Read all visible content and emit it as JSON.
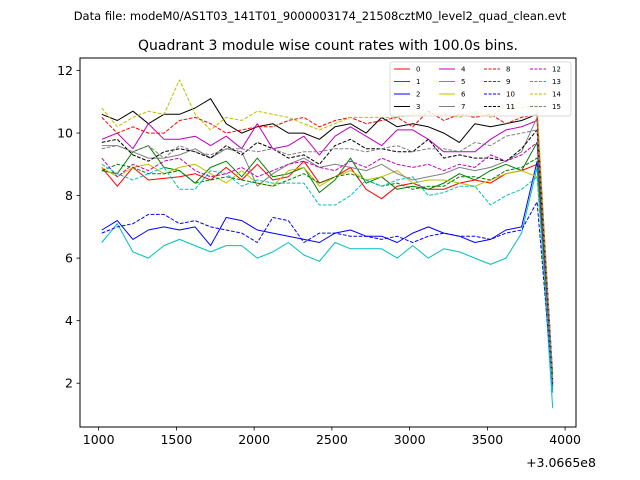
{
  "suptitle": "Data file: modeM0/AS1T03_141T01_9000003174_21508cztM0_level2_quad_clean.evt",
  "chart_data": {
    "type": "line",
    "title": "Quadrant 3 module wise count rates with 100.0s bins.",
    "xlabel": "",
    "ylabel": "",
    "x_offset_label": "+3.0665e8",
    "xlim": [
      880,
      4070
    ],
    "ylim": [
      0.6,
      12.4
    ],
    "xticks": [
      1000,
      1500,
      2000,
      2500,
      3000,
      3500,
      4000
    ],
    "xtick_labels": [
      "1000",
      "1500",
      "2000",
      "2500",
      "3000",
      "3500",
      "4000"
    ],
    "yticks": [
      2,
      4,
      6,
      8,
      10,
      12
    ],
    "ytick_labels": [
      "2",
      "4",
      "6",
      "8",
      "10",
      "12"
    ],
    "grid": false,
    "legend": {
      "placement": "top-right",
      "columns": 4
    },
    "x": [
      1020,
      1120,
      1220,
      1320,
      1420,
      1520,
      1620,
      1720,
      1820,
      1920,
      2020,
      2120,
      2220,
      2320,
      2420,
      2520,
      2620,
      2720,
      2820,
      2920,
      3020,
      3120,
      3220,
      3320,
      3420,
      3520,
      3620,
      3720,
      3820,
      3920
    ],
    "series": [
      {
        "name": "0",
        "color": "#ff0000",
        "dash": "solid",
        "values": [
          8.9,
          8.3,
          8.9,
          8.5,
          8.55,
          8.6,
          8.7,
          8.5,
          8.9,
          8.5,
          9.0,
          8.5,
          8.6,
          9.1,
          8.4,
          8.6,
          8.9,
          8.2,
          7.9,
          8.3,
          8.4,
          8.2,
          8.2,
          8.4,
          8.5,
          8.4,
          8.7,
          8.8,
          9.0,
          2.2
        ]
      },
      {
        "name": "1",
        "color": "#008000",
        "dash": "solid",
        "values": [
          8.8,
          8.7,
          9.4,
          9.6,
          8.9,
          8.8,
          8.4,
          8.9,
          9.1,
          8.6,
          9.2,
          8.6,
          8.7,
          8.9,
          8.1,
          8.5,
          9.2,
          8.4,
          8.6,
          8.2,
          8.3,
          8.2,
          8.4,
          8.7,
          8.5,
          8.8,
          9.0,
          8.8,
          9.7,
          1.9
        ]
      },
      {
        "name": "2",
        "color": "#0000ff",
        "dash": "solid",
        "values": [
          6.9,
          7.2,
          6.6,
          6.9,
          7.0,
          6.9,
          7.0,
          6.4,
          7.3,
          7.2,
          6.9,
          6.8,
          6.7,
          6.6,
          6.5,
          6.8,
          6.9,
          6.7,
          6.7,
          6.5,
          6.8,
          7.0,
          6.8,
          6.7,
          6.5,
          6.6,
          6.9,
          7.0,
          9.1,
          1.8
        ]
      },
      {
        "name": "3",
        "color": "#000000",
        "dash": "solid",
        "values": [
          10.6,
          10.4,
          10.7,
          10.3,
          10.6,
          10.6,
          10.8,
          11.1,
          10.3,
          10.0,
          10.2,
          10.3,
          10.0,
          10.0,
          9.8,
          10.2,
          10.3,
          10.0,
          10.5,
          10.2,
          10.3,
          10.2,
          10.0,
          9.7,
          10.3,
          10.2,
          10.3,
          10.4,
          10.6,
          2.0
        ]
      },
      {
        "name": "4",
        "color": "#bf00bf",
        "dash": "solid",
        "values": [
          9.8,
          10.0,
          9.5,
          10.3,
          9.8,
          9.8,
          9.9,
          9.6,
          9.9,
          9.5,
          10.3,
          9.5,
          9.6,
          9.9,
          9.3,
          9.9,
          10.2,
          9.9,
          9.6,
          10.1,
          10.1,
          9.8,
          9.4,
          9.4,
          9.4,
          9.8,
          10.1,
          10.2,
          10.4,
          2.1
        ]
      },
      {
        "name": "5",
        "color": "#00bfbf",
        "dash": "solid",
        "values": [
          6.5,
          7.1,
          6.2,
          6.0,
          6.4,
          6.6,
          6.4,
          6.2,
          6.4,
          6.4,
          6.0,
          6.2,
          6.5,
          6.1,
          5.9,
          6.5,
          6.3,
          6.3,
          6.3,
          6.0,
          6.4,
          6.0,
          6.3,
          6.2,
          6.0,
          5.8,
          6.0,
          6.8,
          8.9,
          1.2
        ]
      },
      {
        "name": "6",
        "color": "#bfbf00",
        "dash": "solid",
        "values": [
          8.9,
          8.6,
          8.9,
          9.0,
          8.7,
          8.9,
          9.0,
          8.7,
          8.4,
          8.8,
          8.4,
          8.3,
          8.8,
          8.9,
          8.3,
          8.6,
          8.8,
          8.5,
          8.6,
          8.8,
          8.4,
          8.5,
          8.5,
          8.4,
          8.3,
          8.5,
          8.7,
          8.8,
          8.6,
          2.0
        ]
      },
      {
        "name": "7",
        "color": "#808080",
        "dash": "solid",
        "values": [
          9.6,
          9.6,
          9.4,
          9.2,
          9.2,
          9.3,
          9.5,
          9.2,
          9.5,
          9.4,
          8.3,
          8.7,
          9.0,
          9.2,
          8.9,
          9.0,
          8.9,
          8.8,
          9.0,
          8.7,
          8.5,
          8.6,
          8.7,
          8.9,
          8.8,
          8.9,
          9.1,
          9.4,
          10.5,
          1.7
        ]
      },
      {
        "name": "8",
        "color": "#ff0000",
        "dash": "dashed",
        "values": [
          10.5,
          10.0,
          10.2,
          10.0,
          10.0,
          10.4,
          10.5,
          10.3,
          10.0,
          10.1,
          10.2,
          10.2,
          10.4,
          10.5,
          10.2,
          10.4,
          10.5,
          10.3,
          10.4,
          10.5,
          10.2,
          10.7,
          10.4,
          10.6,
          10.5,
          10.6,
          10.3,
          10.5,
          10.6,
          2.3
        ]
      },
      {
        "name": "9",
        "color": "#008000",
        "dash": "dashed",
        "values": [
          8.8,
          9.0,
          8.9,
          8.7,
          8.7,
          8.8,
          8.4,
          8.5,
          8.6,
          8.5,
          8.4,
          8.3,
          8.5,
          8.7,
          8.4,
          8.6,
          8.7,
          8.5,
          8.3,
          8.4,
          8.2,
          8.3,
          8.3,
          8.6,
          8.6,
          8.5,
          8.8,
          8.9,
          9.2,
          2.0
        ]
      },
      {
        "name": "10",
        "color": "#0000ff",
        "dash": "dashed",
        "values": [
          6.8,
          7.0,
          7.1,
          7.4,
          7.4,
          7.1,
          7.2,
          7.0,
          6.9,
          6.8,
          6.5,
          7.3,
          7.2,
          6.5,
          6.8,
          6.8,
          6.7,
          6.7,
          6.6,
          6.7,
          6.5,
          6.7,
          6.8,
          6.7,
          6.7,
          6.6,
          6.8,
          6.9,
          7.8,
          1.9
        ]
      },
      {
        "name": "11",
        "color": "#000000",
        "dash": "dashed",
        "values": [
          9.7,
          9.8,
          9.3,
          9.1,
          9.4,
          9.5,
          9.4,
          9.2,
          9.6,
          9.3,
          9.7,
          9.5,
          9.2,
          9.3,
          9.0,
          9.6,
          9.8,
          9.5,
          9.5,
          9.4,
          9.4,
          9.8,
          9.2,
          9.3,
          9.2,
          9.2,
          9.1,
          9.5,
          10.1,
          2.1
        ]
      },
      {
        "name": "12",
        "color": "#bf00bf",
        "dash": "dashed",
        "values": [
          9.2,
          8.6,
          9.0,
          8.8,
          9.1,
          9.2,
          8.8,
          8.6,
          8.7,
          8.9,
          8.6,
          8.8,
          9.0,
          9.1,
          8.9,
          8.8,
          9.1,
          8.9,
          9.2,
          9.0,
          8.9,
          9.0,
          8.8,
          9.0,
          8.9,
          9.3,
          9.1,
          9.3,
          9.7,
          2.0
        ]
      },
      {
        "name": "13",
        "color": "#00bfbf",
        "dash": "dashed",
        "values": [
          9.0,
          8.7,
          8.5,
          8.7,
          8.9,
          8.2,
          8.2,
          8.8,
          8.7,
          8.3,
          8.5,
          8.4,
          8.4,
          8.4,
          7.7,
          7.7,
          8.0,
          8.5,
          8.3,
          8.5,
          8.6,
          8.0,
          8.1,
          8.3,
          8.3,
          7.7,
          8.0,
          8.2,
          8.6,
          1.7
        ]
      },
      {
        "name": "14",
        "color": "#bfbf00",
        "dash": "dashed",
        "values": [
          10.8,
          10.2,
          10.5,
          10.7,
          10.6,
          11.7,
          10.6,
          10.1,
          10.5,
          10.4,
          10.7,
          10.6,
          10.5,
          10.3,
          10.1,
          10.3,
          10.5,
          10.5,
          10.5,
          10.5,
          10.6,
          10.6,
          10.6,
          10.5,
          10.7,
          10.5,
          10.9,
          10.8,
          10.9,
          2.1
        ]
      },
      {
        "name": "15",
        "color": "#808080",
        "dash": "dashed",
        "values": [
          9.5,
          9.6,
          9.4,
          9.6,
          9.2,
          9.6,
          9.4,
          9.3,
          9.5,
          9.5,
          9.4,
          9.5,
          9.3,
          9.4,
          9.4,
          9.5,
          9.5,
          9.4,
          9.5,
          9.6,
          9.4,
          9.5,
          9.5,
          9.4,
          9.7,
          9.6,
          9.9,
          10.0,
          10.1,
          2.2
        ]
      }
    ]
  }
}
